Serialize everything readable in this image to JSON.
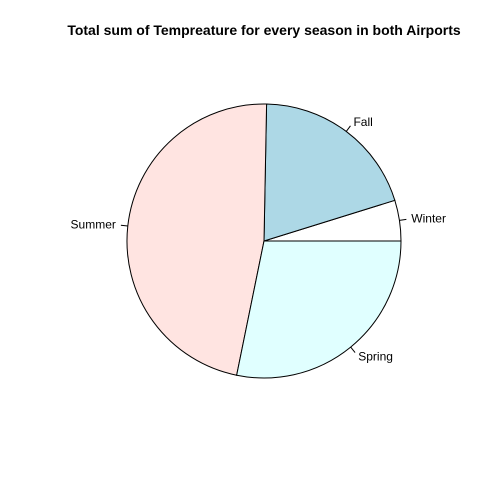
{
  "chart_data": {
    "type": "pie",
    "title": "Total sum of Tempreature for every season in both Airports",
    "slices": [
      {
        "label": "Winter",
        "value": 4.8,
        "color": "#ffffff"
      },
      {
        "label": "Fall",
        "value": 19.9,
        "color": "#add8e6"
      },
      {
        "label": "Summer",
        "value": 47.1,
        "color": "#ffe4e1"
      },
      {
        "label": "Spring",
        "value": 28.2,
        "color": "#e0ffff"
      }
    ],
    "start_angle_deg": 0,
    "direction": "counterclockwise",
    "border_color": "#000000"
  }
}
